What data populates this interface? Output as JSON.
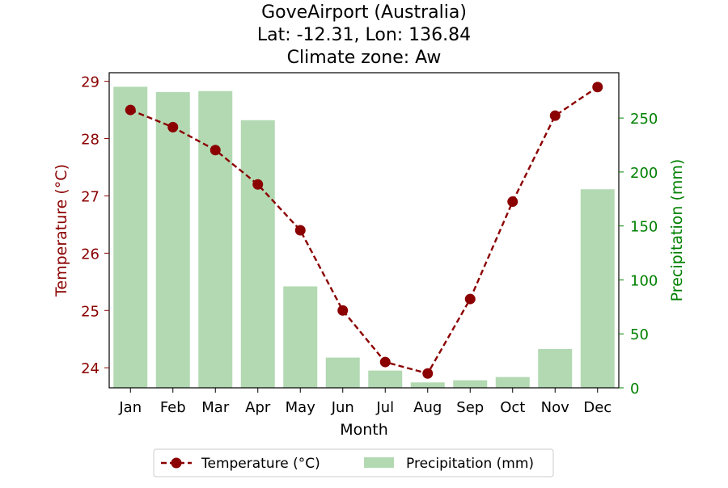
{
  "chart_data": {
    "type": "bar+line",
    "title_lines": [
      "GoveAirport (Australia)",
      "Lat: -12.31, Lon: 136.84",
      "Climate zone: Aw"
    ],
    "xlabel": "Month",
    "ylabel_left": "Temperature (°C)",
    "ylabel_right": "Precipitation (mm)",
    "categories": [
      "Jan",
      "Feb",
      "Mar",
      "Apr",
      "May",
      "Jun",
      "Jul",
      "Aug",
      "Sep",
      "Oct",
      "Nov",
      "Dec"
    ],
    "temperature": {
      "name": "Temperature (°C)",
      "values": [
        28.5,
        28.2,
        27.8,
        27.2,
        26.4,
        25.0,
        24.1,
        23.9,
        25.2,
        26.9,
        28.4,
        28.9
      ]
    },
    "precipitation": {
      "name": "Precipitation (mm)",
      "values": [
        279,
        274,
        275,
        248,
        94,
        28,
        16,
        5,
        7,
        10,
        36,
        184
      ]
    },
    "y_left_ticks": [
      24,
      25,
      26,
      27,
      28,
      29
    ],
    "y_left_range": [
      23.65,
      29.15
    ],
    "y_right_ticks": [
      0,
      50,
      100,
      150,
      200,
      250
    ],
    "y_right_range": [
      0,
      292
    ],
    "colors": {
      "temperature": "#8b0000",
      "precipitation": "#b2d9b2",
      "right_axis": "#008000",
      "left_axis": "#8b0000"
    },
    "legend_placement": "bottom-center",
    "grid": false
  }
}
